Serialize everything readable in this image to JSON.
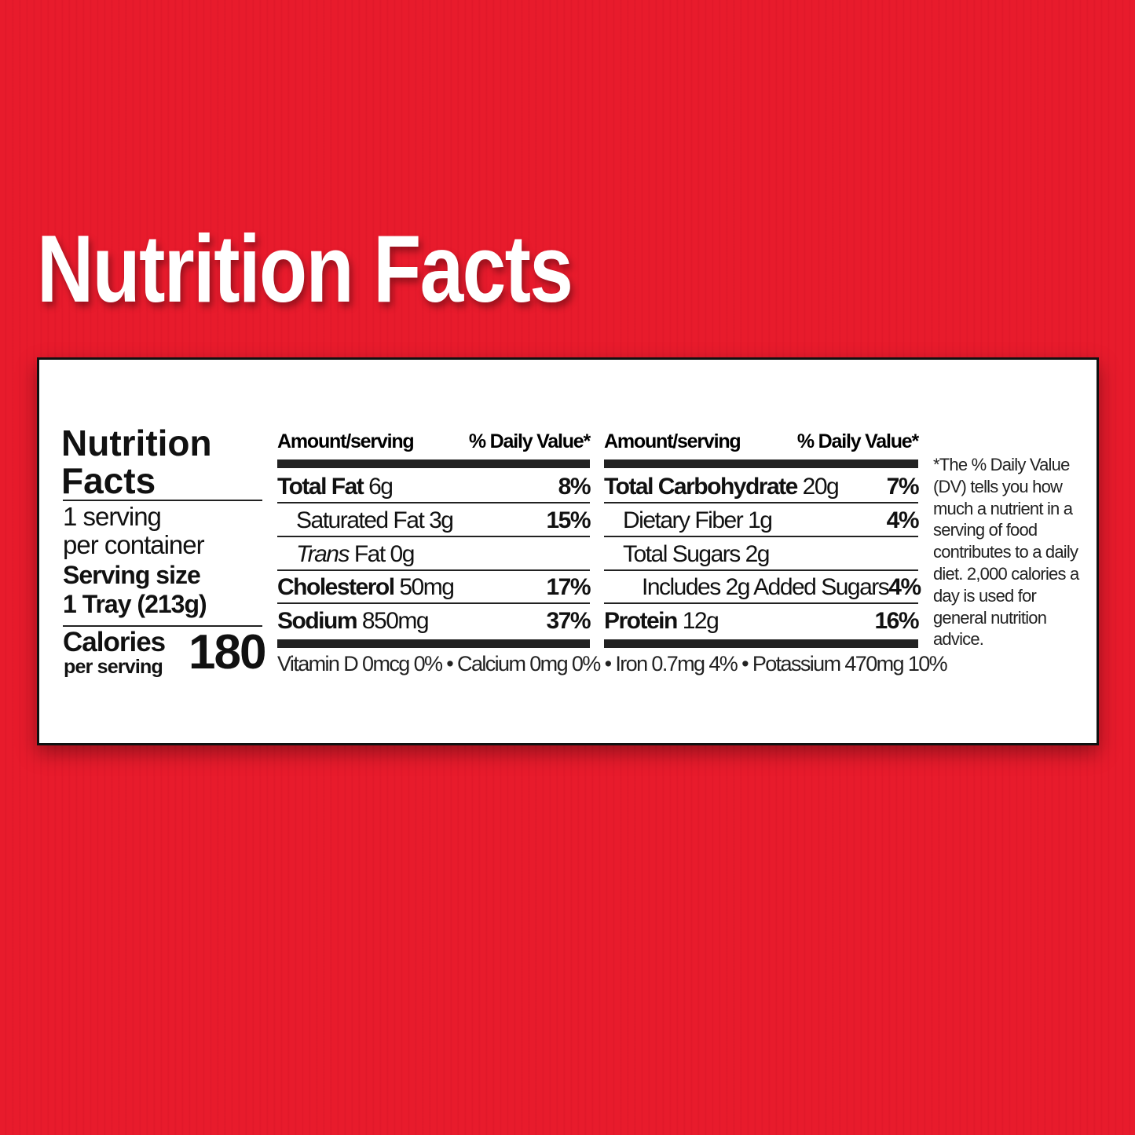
{
  "page_title": "Nutrition Facts",
  "label": {
    "heading": [
      "Nutrition",
      "Facts"
    ],
    "servings_per_container": [
      "1 serving",
      "per container"
    ],
    "serving_size_label": "Serving size",
    "serving_size_value": "1 Tray (213g)",
    "calories_label": "Calories",
    "calories_sub": "per serving",
    "calories_value": "180",
    "header_amount": "Amount/serving",
    "header_dv": "% Daily Value*",
    "left_rows": [
      {
        "name": "Total Fat",
        "amount": "6g",
        "dv": "8%",
        "bold": true,
        "indent": 0
      },
      {
        "name": "Saturated Fat",
        "amount": "3g",
        "dv": "15%",
        "bold": false,
        "indent": 1
      },
      {
        "name": "Trans",
        "name_suffix": "Fat",
        "amount": "0g",
        "dv": "",
        "bold": false,
        "indent": 1
      },
      {
        "name": "Cholesterol",
        "amount": "50mg",
        "dv": "17%",
        "bold": true,
        "indent": 0
      },
      {
        "name": "Sodium",
        "amount": "850mg",
        "dv": "37%",
        "bold": true,
        "indent": 0
      }
    ],
    "right_rows": [
      {
        "name": "Total Carbohydrate",
        "amount": "20g",
        "dv": "7%",
        "bold": true,
        "indent": 0
      },
      {
        "name": "Dietary Fiber",
        "amount": "1g",
        "dv": "4%",
        "bold": false,
        "indent": 1
      },
      {
        "name": "Total Sugars",
        "amount": "2g",
        "dv": "",
        "bold": false,
        "indent": 1
      },
      {
        "name": "Includes 2g Added Sugars",
        "amount": "",
        "dv": "4%",
        "bold": false,
        "indent": 2
      },
      {
        "name": "Protein",
        "amount": "12g",
        "dv": "16%",
        "bold": true,
        "indent": 0
      }
    ],
    "micronutrients": "Vitamin D 0mcg 0% • Calcium 0mg 0% • Iron 0.7mg 4% • Potassium 470mg 10%",
    "footnote": "*The % Daily Value (DV) tells you how much a nutrient in a serving of food contributes to a daily diet. 2,000 calories a day is used for general nutrition advice."
  },
  "colors": {
    "background": "#e81b2c",
    "label_bg": "#ffffff",
    "text": "#111111"
  }
}
